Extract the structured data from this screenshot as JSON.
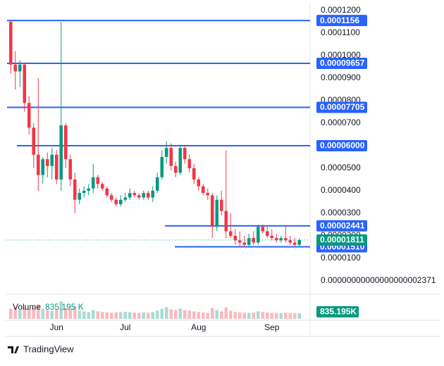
{
  "chart_data": {
    "type": "candlestick",
    "categories": [
      null,
      null,
      null,
      null,
      null,
      null,
      null,
      null,
      null,
      null,
      "Jun",
      null,
      null,
      null,
      null,
      null,
      null,
      null,
      null,
      null,
      null,
      null,
      null,
      null,
      null,
      "Jul",
      null,
      null,
      null,
      null,
      null,
      null,
      null,
      null,
      null,
      null,
      null,
      null,
      null,
      null,
      null,
      "Aug",
      null,
      null,
      null,
      null,
      null,
      null,
      null,
      null,
      null,
      null,
      null,
      null,
      null,
      null,
      null,
      "Sep",
      null,
      null,
      null,
      null,
      null,
      null
    ],
    "open": [
      0.000115,
      9.6e-05,
      9.3e-05,
      9.6e-05,
      7.9e-05,
      6.8e-05,
      5.6e-05,
      4.7e-05,
      5.4e-05,
      5.1e-05,
      5.6e-05,
      4.5e-05,
      6.9e-05,
      5.4e-05,
      4.5e-05,
      3.6e-05,
      3.9e-05,
      4e-05,
      4.1e-05,
      4.6e-05,
      4.3e-05,
      4.1e-05,
      3.8e-05,
      3.6e-05,
      3.4e-05,
      3.6e-05,
      3.7e-05,
      3.9e-05,
      3.8e-05,
      3.7e-05,
      3.9e-05,
      3.7e-05,
      4e-05,
      4.6e-05,
      5.5e-05,
      5.9e-05,
      5.1e-05,
      4.8e-05,
      5.9e-05,
      5.4e-05,
      5e-05,
      4.5e-05,
      4.2e-05,
      3.9e-05,
      3.8e-05,
      2.4e-05,
      3.6e-05,
      3.1e-05,
      2.2e-05,
      2e-05,
      1.8e-05,
      1.7e-05,
      1.6e-05,
      1.9e-05,
      1.7e-05,
      2.4e-05,
      2.2e-05,
      2e-05,
      1.9e-05,
      1.8e-05,
      1.9e-05,
      1.8e-05,
      1.7e-05,
      1.6e-05
    ],
    "high": [
      0.0001156,
      0.000102,
      9.8e-05,
      9.7e-05,
      8.2e-05,
      7e-05,
      9e-05,
      5.5e-05,
      5.7e-05,
      5.9e-05,
      5.8e-05,
      0.000115,
      7e-05,
      5.6e-05,
      4.8e-05,
      4.1e-05,
      4.2e-05,
      4.3e-05,
      5.2e-05,
      4.7e-05,
      4.4e-05,
      4.2e-05,
      3.9e-05,
      3.7e-05,
      3.8e-05,
      3.9e-05,
      4.1e-05,
      4e-05,
      3.9e-05,
      4e-05,
      4e-05,
      4.2e-05,
      4.8e-05,
      5.8e-05,
      6.2e-05,
      6.1e-05,
      5.3e-05,
      6e-05,
      6e-05,
      5.6e-05,
      5.2e-05,
      4.6e-05,
      4.3e-05,
      4.1e-05,
      3.9e-05,
      3.8e-05,
      4e-05,
      5.8e-05,
      3e-05,
      2.3e-05,
      2.2e-05,
      2e-05,
      2.1e-05,
      2.2e-05,
      2.5e-05,
      2.5e-05,
      2.4e-05,
      2.3e-05,
      2.1e-05,
      2e-05,
      2.4e-05,
      2e-05,
      1.9e-05,
      1.9e-05
    ],
    "low": [
      9.2e-05,
      8.5e-05,
      8.6e-05,
      7.5e-05,
      6.5e-05,
      5e-05,
      4e-05,
      4.3e-05,
      4.6e-05,
      4.5e-05,
      4.3e-05,
      4e-05,
      5e-05,
      4.2e-05,
      3e-05,
      3.4e-05,
      3.7e-05,
      3.8e-05,
      3.9e-05,
      4.1e-05,
      4e-05,
      3.7e-05,
      3.5e-05,
      3.3e-05,
      3.3e-05,
      3.5e-05,
      3.6e-05,
      3.7e-05,
      3.6e-05,
      3.6e-05,
      3.6e-05,
      3.5e-05,
      3.9e-05,
      4.5e-05,
      5.2e-05,
      4.9e-05,
      4.6e-05,
      4.7e-05,
      5.2e-05,
      4.8e-05,
      4.3e-05,
      4e-05,
      3.8e-05,
      3.6e-05,
      1.9e-05,
      2.2e-05,
      2.9e-05,
      1.9e-05,
      1.9e-05,
      1.6e-05,
      1.5e-05,
      1.5e-05,
      1.5e-05,
      1.6e-05,
      1.6e-05,
      2.1e-05,
      1.9e-05,
      1.8e-05,
      1.7e-05,
      1.7e-05,
      1.7e-05,
      1.6e-05,
      1.5e-05,
      1.5e-05
    ],
    "close": [
      9.6e-05,
      9.3e-05,
      9.6e-05,
      7.9e-05,
      6.8e-05,
      5.6e-05,
      4.7e-05,
      5.4e-05,
      5.1e-05,
      5.6e-05,
      4.5e-05,
      6.9e-05,
      5.4e-05,
      4.5e-05,
      3.6e-05,
      3.9e-05,
      4e-05,
      4.1e-05,
      4.6e-05,
      4.3e-05,
      4.1e-05,
      3.8e-05,
      3.6e-05,
      3.4e-05,
      3.6e-05,
      3.7e-05,
      3.9e-05,
      3.8e-05,
      3.7e-05,
      3.9e-05,
      3.7e-05,
      4e-05,
      4.6e-05,
      5.5e-05,
      5.9e-05,
      5.1e-05,
      4.8e-05,
      5.9e-05,
      5.4e-05,
      5e-05,
      4.5e-05,
      4.2e-05,
      3.9e-05,
      3.8e-05,
      2.4e-05,
      3.6e-05,
      3.1e-05,
      2.2e-05,
      2e-05,
      1.8e-05,
      1.7e-05,
      1.6e-05,
      1.9e-05,
      1.7e-05,
      2.4e-05,
      2.2e-05,
      2e-05,
      1.9e-05,
      1.8e-05,
      1.9e-05,
      1.8e-05,
      1.7e-05,
      1.6e-05,
      1.811e-05
    ],
    "up_color": "#089981",
    "down_color": "#f23645",
    "ylim": [
      -4.0625e-06,
      0.000123125
    ],
    "yticks": [
      {
        "value": 0.00012,
        "label": "0.0001200"
      },
      {
        "value": 0.00011,
        "label": "0.0001100"
      },
      {
        "value": 0.0001,
        "label": "0.0001000"
      },
      {
        "value": 9e-05,
        "label": "0.0000900"
      },
      {
        "value": 8e-05,
        "label": "0.0000800"
      },
      {
        "value": 7e-05,
        "label": "0.0000700"
      },
      {
        "value": 6e-05,
        "label": "0.0000600"
      },
      {
        "value": 5e-05,
        "label": "0.0000500"
      },
      {
        "value": 4e-05,
        "label": "0.0000400"
      },
      {
        "value": 3e-05,
        "label": "0.0000300"
      },
      {
        "value": 2e-05,
        "label": "0.0000200"
      },
      {
        "value": 1e-05,
        "label": "0.0000100"
      },
      {
        "value": 2.371e-20,
        "label": "0.00000000000000000002371"
      }
    ],
    "levels": [
      {
        "value": 0.0001156,
        "label": "0.0001156"
      },
      {
        "value": 9.657e-05,
        "label": "0.00009657"
      },
      {
        "value": 7.705e-05,
        "label": "0.00007705"
      },
      {
        "value": 6e-05,
        "label": "0.00006000"
      },
      {
        "value": 2.441e-05,
        "label": "0.00002441"
      },
      {
        "value": 1.51e-05,
        "label": "0.00001510"
      }
    ],
    "level_color": "#2962ff",
    "current_price": {
      "value": 1.811e-05,
      "label": "0.00001811"
    },
    "volume": {
      "name": "Volume",
      "values": [
        1500000,
        1800000,
        1300000,
        1600000,
        1400000,
        1700000,
        2100000,
        1500000,
        1300000,
        1200000,
        1400000,
        2600000,
        1600000,
        1500000,
        1800000,
        1200000,
        1100000,
        1000000,
        1300000,
        1100000,
        1000000,
        950000,
        900000,
        950000,
        1000000,
        1050000,
        980000,
        920000,
        900000,
        950000,
        900000,
        1000000,
        1200000,
        1500000,
        1700000,
        1400000,
        1300000,
        1500000,
        1300000,
        1200000,
        1100000,
        1000000,
        950000,
        900000,
        1600000,
        1300000,
        1100000,
        1700000,
        1200000,
        1000000,
        950000,
        900000,
        900000,
        950000,
        1100000,
        1000000,
        950000,
        900000,
        880000,
        860000,
        900000,
        870000,
        850000,
        835195
      ],
      "legend_label": "835.195 K",
      "axis_label": "835.195K"
    }
  },
  "footer": {
    "brand": "TradingView"
  }
}
